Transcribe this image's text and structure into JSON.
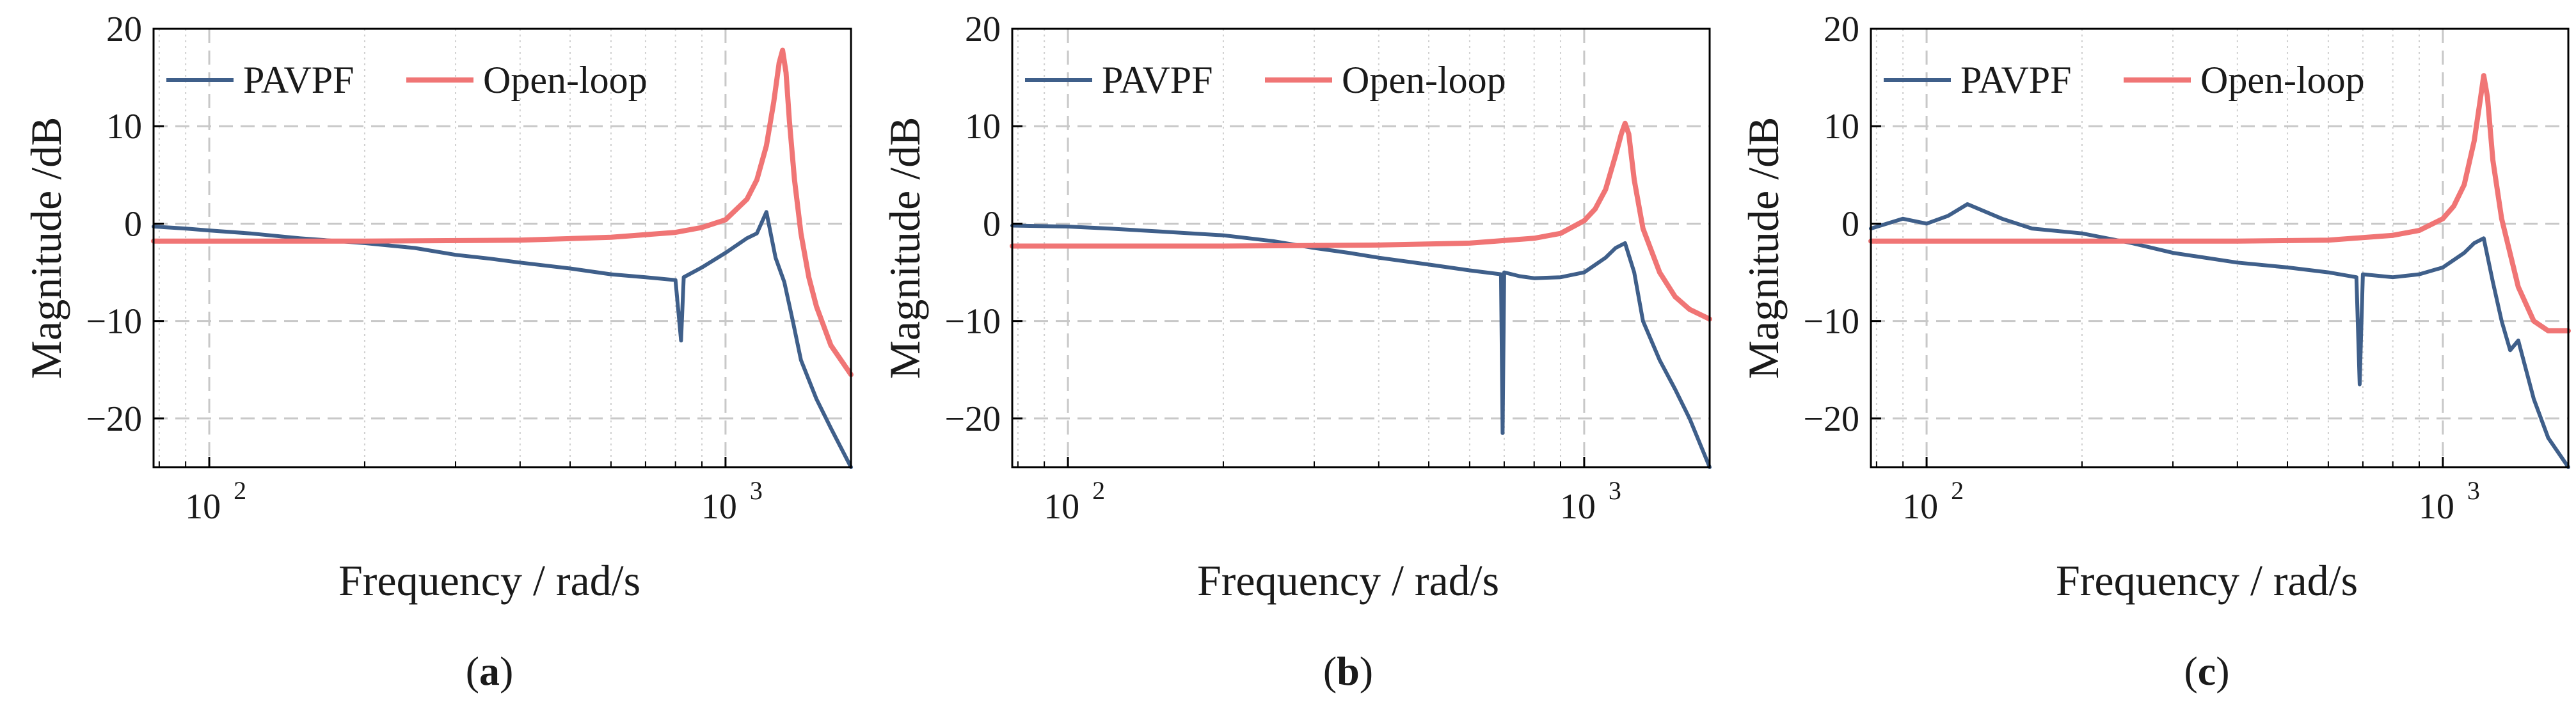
{
  "figure": {
    "labels": [
      "(a)",
      "(b)",
      "(c)"
    ]
  },
  "colors": {
    "pavpf": "#3F5F8A",
    "open_loop": "#F07575",
    "grid": "#d0d0d0",
    "axis": "#000000"
  },
  "chart_data": [
    {
      "type": "line",
      "panel_label": "(a)",
      "xscale": "log",
      "xlim": [
        78,
        1750
      ],
      "ylim": [
        -25,
        20
      ],
      "xlabel": "Frequency / rad/s",
      "ylabel": "Magnitude /dB",
      "xticks": [
        {
          "value": 100,
          "label": "10",
          "exp": "2"
        },
        {
          "value": 1000,
          "label": "10",
          "exp": "3"
        }
      ],
      "yticks": [
        -20,
        -10,
        0,
        10,
        20
      ],
      "legend": [
        "PAVPF",
        "Open-loop"
      ],
      "series": [
        {
          "name": "PAVPF",
          "color_key": "pavpf",
          "x": [
            78,
            90,
            100,
            120,
            150,
            200,
            250,
            300,
            350,
            400,
            500,
            600,
            700,
            800,
            820,
            830,
            900,
            1000,
            1100,
            1150,
            1200,
            1250,
            1300,
            1350,
            1400,
            1500,
            1600,
            1750
          ],
          "y": [
            -0.3,
            -0.5,
            -0.7,
            -1.0,
            -1.5,
            -2.0,
            -2.5,
            -3.2,
            -3.6,
            -4.0,
            -4.6,
            -5.2,
            -5.5,
            -5.8,
            -12,
            -5.5,
            -4.5,
            -3.0,
            -1.5,
            -1.0,
            1.2,
            -3.5,
            -6.0,
            -10,
            -14,
            -18,
            -21,
            -25
          ]
        },
        {
          "name": "Open-loop",
          "color_key": "open_loop",
          "x": [
            78,
            200,
            400,
            600,
            800,
            900,
            1000,
            1100,
            1150,
            1200,
            1240,
            1270,
            1290,
            1310,
            1330,
            1360,
            1400,
            1450,
            1500,
            1600,
            1750
          ],
          "y": [
            -1.8,
            -1.8,
            -1.7,
            -1.4,
            -0.9,
            -0.4,
            0.4,
            2.5,
            4.5,
            8.0,
            12.5,
            16.5,
            17.8,
            15.5,
            10.5,
            4.5,
            -1.0,
            -5.5,
            -8.5,
            -12.5,
            -15.5
          ]
        }
      ]
    },
    {
      "type": "line",
      "panel_label": "(b)",
      "xscale": "log",
      "xlim": [
        78,
        1750
      ],
      "ylim": [
        -25,
        20
      ],
      "xlabel": "Frequency / rad/s",
      "ylabel": "Magnitude /dB",
      "xticks": [
        {
          "value": 100,
          "label": "10",
          "exp": "2"
        },
        {
          "value": 1000,
          "label": "10",
          "exp": "3"
        }
      ],
      "yticks": [
        -20,
        -10,
        0,
        10,
        20
      ],
      "legend": [
        "PAVPF",
        "Open-loop"
      ],
      "series": [
        {
          "name": "PAVPF",
          "color_key": "pavpf",
          "x": [
            78,
            100,
            120,
            150,
            200,
            250,
            300,
            350,
            400,
            500,
            600,
            690,
            695,
            700,
            750,
            800,
            900,
            1000,
            1100,
            1150,
            1200,
            1250,
            1300,
            1400,
            1500,
            1600,
            1750
          ],
          "y": [
            -0.2,
            -0.3,
            -0.5,
            -0.8,
            -1.2,
            -1.8,
            -2.5,
            -3.0,
            -3.5,
            -4.2,
            -4.8,
            -5.2,
            -21.5,
            -5.0,
            -5.4,
            -5.6,
            -5.5,
            -5.0,
            -3.5,
            -2.5,
            -2.0,
            -5.0,
            -10,
            -14,
            -17,
            -20,
            -25
          ]
        },
        {
          "name": "Open-loop",
          "color_key": "open_loop",
          "x": [
            78,
            200,
            400,
            600,
            800,
            900,
            1000,
            1050,
            1100,
            1150,
            1180,
            1200,
            1220,
            1250,
            1300,
            1400,
            1500,
            1600,
            1750
          ],
          "y": [
            -2.3,
            -2.3,
            -2.2,
            -2.0,
            -1.5,
            -1.0,
            0.3,
            1.5,
            3.5,
            7.0,
            9.2,
            10.3,
            9.2,
            4.5,
            -0.5,
            -5.0,
            -7.5,
            -8.8,
            -9.8
          ]
        }
      ]
    },
    {
      "type": "line",
      "panel_label": "(c)",
      "xscale": "log",
      "xlim": [
        78,
        1750
      ],
      "ylim": [
        -25,
        20
      ],
      "xlabel": "Frequency / rad/s",
      "ylabel": "Magnitude /dB",
      "xticks": [
        {
          "value": 100,
          "label": "10",
          "exp": "2"
        },
        {
          "value": 1000,
          "label": "10",
          "exp": "3"
        }
      ],
      "yticks": [
        -20,
        -10,
        0,
        10,
        20
      ],
      "legend": [
        "PAVPF",
        "Open-loop"
      ],
      "series": [
        {
          "name": "PAVPF",
          "color_key": "pavpf",
          "x": [
            78,
            90,
            100,
            110,
            120,
            140,
            160,
            200,
            250,
            300,
            400,
            500,
            600,
            680,
            690,
            700,
            800,
            900,
            1000,
            1100,
            1150,
            1200,
            1250,
            1300,
            1350,
            1400,
            1500,
            1600,
            1750
          ],
          "y": [
            -0.5,
            0.5,
            0.0,
            0.8,
            2.0,
            0.5,
            -0.5,
            -1.0,
            -2.0,
            -3.0,
            -4.0,
            -4.5,
            -5.0,
            -5.5,
            -16.5,
            -5.2,
            -5.5,
            -5.2,
            -4.5,
            -3.0,
            -2.0,
            -1.5,
            -6.0,
            -10,
            -13,
            -12,
            -18,
            -22,
            -25
          ]
        },
        {
          "name": "Open-loop",
          "color_key": "open_loop",
          "x": [
            78,
            200,
            400,
            600,
            800,
            900,
            1000,
            1050,
            1100,
            1150,
            1180,
            1200,
            1220,
            1250,
            1300,
            1400,
            1500,
            1600,
            1750
          ],
          "y": [
            -1.8,
            -1.8,
            -1.8,
            -1.7,
            -1.2,
            -0.7,
            0.5,
            1.8,
            4.0,
            8.5,
            12.5,
            15.2,
            13.0,
            6.5,
            0.5,
            -6.5,
            -10,
            -11,
            -11
          ]
        }
      ]
    }
  ]
}
